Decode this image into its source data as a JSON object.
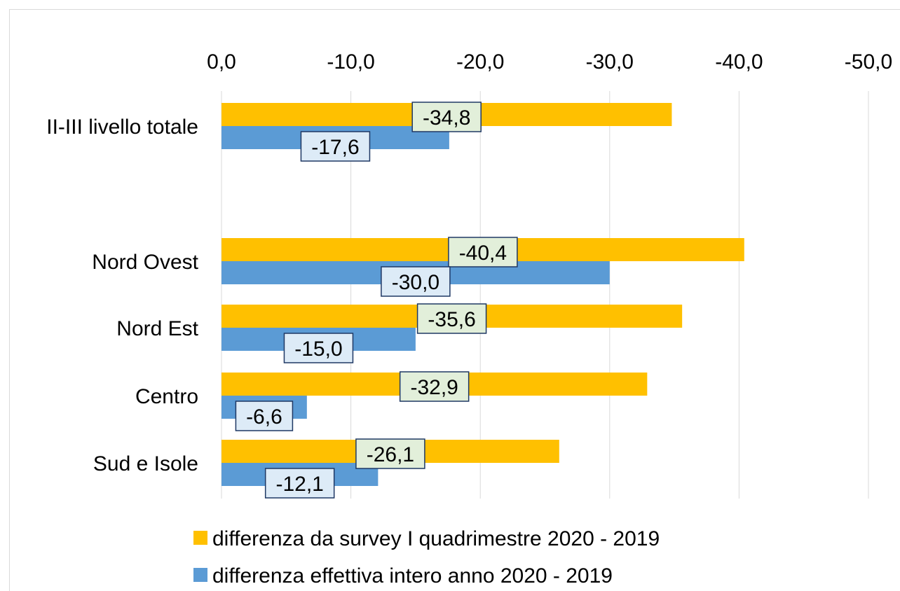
{
  "chart_data": {
    "type": "bar",
    "orientation": "horizontal",
    "categories": [
      "II-III livello totale",
      "",
      "Nord Ovest",
      "Nord Est",
      "Centro",
      "Sud e Isole"
    ],
    "series": [
      {
        "name": "differenza da survey I quadrimestre 2020 - 2019",
        "color": "#FFC000",
        "label_background": "#E2EFDA",
        "values": [
          -34.8,
          null,
          -40.4,
          -35.6,
          -32.9,
          -26.1
        ],
        "labels": [
          "-34,8",
          "",
          "-40,4",
          "-35,6",
          "-32,9",
          "-26,1"
        ]
      },
      {
        "name": "differenza effettiva intero anno 2020 - 2019",
        "color": "#5B9BD5",
        "label_background": "#DDEBF7",
        "values": [
          -17.6,
          null,
          -30.0,
          -15.0,
          -6.6,
          -12.1
        ],
        "labels": [
          "-17,6",
          "",
          "-30,0",
          "-15,0",
          "-6,6",
          "-12,1"
        ]
      }
    ],
    "xlim": [
      0,
      -50
    ],
    "x_ticks": [
      0,
      -10,
      -20,
      -30,
      -40,
      -50
    ],
    "x_tick_labels": [
      "0,0",
      "-10,0",
      "-20,0",
      "-30,0",
      "-40,0",
      "-50,0"
    ],
    "x_axis_position": "top",
    "x_axis_reversed": true,
    "grid": true,
    "legend_position": "bottom"
  }
}
